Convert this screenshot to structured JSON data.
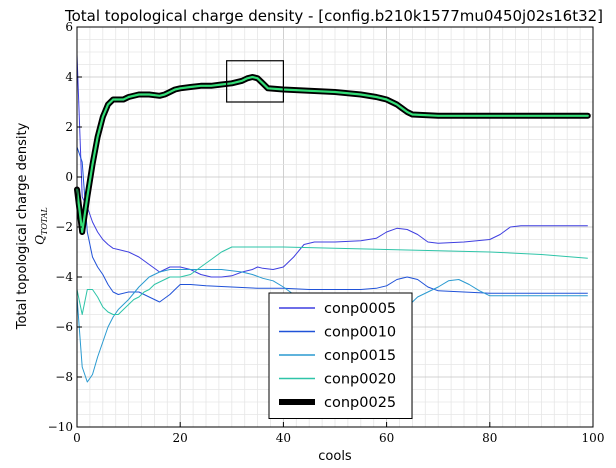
{
  "chart_data": {
    "type": "line",
    "title": "Total topological charge density - [config.b210k1577mu0450j02s16t32]",
    "xlabel": "cools",
    "ylabel": "Total topological charge density",
    "ylabel_sub": "Q_TOTAL",
    "xlim": [
      0,
      100
    ],
    "ylim": [
      -10,
      6
    ],
    "x_ticks": [
      0,
      20,
      40,
      60,
      80,
      100
    ],
    "y_ticks": [
      -10,
      -8,
      -6,
      -4,
      -2,
      0,
      2,
      4,
      6
    ],
    "x_tick_labels": [
      "0",
      "20",
      "40",
      "60",
      "80",
      "100"
    ],
    "y_tick_labels": [
      "−10",
      "−8",
      "−6",
      "−4",
      "−2",
      "0",
      "2",
      "4",
      "6"
    ],
    "grid": true,
    "minor_grid": true,
    "legend_position": "bottom-center",
    "annotation": "inset zoom box around cools 29–40",
    "annotation_box": {
      "x": [
        29,
        40
      ],
      "y": [
        3.0,
        4.65
      ]
    },
    "series": [
      {
        "name": "conp0005",
        "color": "#3f3fe0",
        "width": 1,
        "x": [
          0,
          1,
          2,
          3,
          4,
          5,
          6,
          7,
          8,
          10,
          12,
          14,
          16,
          18,
          20,
          22,
          24,
          26,
          28,
          30,
          32,
          34,
          35,
          36,
          38,
          40,
          42,
          44,
          46,
          50,
          55,
          58,
          60,
          62,
          64,
          66,
          68,
          70,
          75,
          80,
          82,
          84,
          86,
          90,
          95,
          99
        ],
        "y": [
          4.9,
          -0.8,
          -1.2,
          -1.8,
          -2.2,
          -2.5,
          -2.7,
          -2.85,
          -2.9,
          -3.0,
          -3.2,
          -3.5,
          -3.8,
          -3.6,
          -3.6,
          -3.7,
          -3.9,
          -4.0,
          -4.0,
          -3.95,
          -3.8,
          -3.7,
          -3.6,
          -3.65,
          -3.7,
          -3.6,
          -3.2,
          -2.7,
          -2.6,
          -2.6,
          -2.55,
          -2.45,
          -2.2,
          -2.05,
          -2.1,
          -2.3,
          -2.6,
          -2.65,
          -2.6,
          -2.5,
          -2.3,
          -2.0,
          -1.95,
          -1.95,
          -1.95,
          -1.95
        ]
      },
      {
        "name": "conp0010",
        "color": "#2052d8",
        "width": 1,
        "x": [
          0,
          1,
          2,
          3,
          4,
          5,
          6,
          7,
          8,
          10,
          12,
          14,
          16,
          18,
          19,
          20,
          22,
          25,
          30,
          35,
          40,
          45,
          50,
          55,
          58,
          60,
          62,
          64,
          66,
          68,
          70,
          75,
          80,
          90,
          99
        ],
        "y": [
          1.2,
          0.6,
          -2.2,
          -3.2,
          -3.6,
          -3.9,
          -4.3,
          -4.6,
          -4.7,
          -4.6,
          -4.6,
          -4.8,
          -5.0,
          -4.7,
          -4.5,
          -4.3,
          -4.3,
          -4.35,
          -4.4,
          -4.45,
          -4.45,
          -4.5,
          -4.5,
          -4.5,
          -4.45,
          -4.35,
          -4.1,
          -4.0,
          -4.1,
          -4.4,
          -4.55,
          -4.6,
          -4.65,
          -4.65,
          -4.65
        ]
      },
      {
        "name": "conp0015",
        "color": "#2a9ad0",
        "width": 1,
        "x": [
          0,
          1,
          2,
          3,
          4,
          5,
          6,
          7,
          8,
          10,
          12,
          14,
          16,
          18,
          20,
          22,
          24,
          26,
          28,
          30,
          32,
          34,
          36,
          38,
          40,
          42,
          45,
          50,
          55,
          60,
          62,
          64,
          65,
          66,
          68,
          70,
          72,
          74,
          76,
          78,
          80,
          85,
          90,
          95,
          99
        ],
        "y": [
          -4.8,
          -7.6,
          -8.2,
          -7.9,
          -7.2,
          -6.6,
          -6.0,
          -5.6,
          -5.3,
          -4.9,
          -4.4,
          -4.0,
          -3.8,
          -3.7,
          -3.7,
          -3.7,
          -3.7,
          -3.7,
          -3.7,
          -3.75,
          -3.8,
          -3.9,
          -4.05,
          -4.15,
          -4.4,
          -4.7,
          -5.1,
          -5.4,
          -5.5,
          -5.45,
          -5.4,
          -5.2,
          -5.0,
          -4.8,
          -4.6,
          -4.4,
          -4.15,
          -4.1,
          -4.3,
          -4.55,
          -4.75,
          -4.75,
          -4.75,
          -4.75,
          -4.75
        ]
      },
      {
        "name": "conp0020",
        "color": "#2ec4a8",
        "width": 1,
        "x": [
          0,
          1,
          2,
          3,
          4,
          5,
          6,
          7,
          8,
          9,
          10,
          11,
          12,
          13,
          14,
          15,
          16,
          18,
          20,
          22,
          24,
          26,
          28,
          30,
          32,
          35,
          40,
          50,
          60,
          70,
          80,
          90,
          99
        ],
        "y": [
          -4.5,
          -5.5,
          -4.5,
          -4.5,
          -4.8,
          -5.2,
          -5.4,
          -5.5,
          -5.5,
          -5.3,
          -5.1,
          -4.9,
          -4.8,
          -4.6,
          -4.5,
          -4.3,
          -4.2,
          -4.0,
          -4.0,
          -3.9,
          -3.6,
          -3.3,
          -3.0,
          -2.8,
          -2.8,
          -2.8,
          -2.8,
          -2.85,
          -2.9,
          -2.95,
          -3.0,
          -3.1,
          -3.25
        ]
      },
      {
        "name": "conp0025",
        "color": "#000000",
        "fill_color": "#33dd77",
        "width": 5,
        "x": [
          0,
          1,
          2,
          3,
          4,
          5,
          6,
          7,
          8,
          9,
          10,
          12,
          14,
          16,
          17,
          18,
          19,
          20,
          22,
          24,
          26,
          28,
          30,
          32,
          33,
          34,
          35,
          36,
          37,
          40,
          45,
          50,
          55,
          58,
          60,
          62,
          63,
          64,
          65,
          70,
          75,
          80,
          85,
          90,
          95,
          99
        ],
        "y": [
          -0.5,
          -2.2,
          -0.8,
          0.5,
          1.6,
          2.4,
          2.9,
          3.1,
          3.1,
          3.1,
          3.2,
          3.3,
          3.3,
          3.25,
          3.3,
          3.4,
          3.5,
          3.55,
          3.6,
          3.65,
          3.65,
          3.7,
          3.75,
          3.85,
          3.95,
          4.0,
          3.95,
          3.75,
          3.55,
          3.5,
          3.45,
          3.4,
          3.3,
          3.2,
          3.1,
          2.9,
          2.75,
          2.6,
          2.5,
          2.45,
          2.45,
          2.45,
          2.45,
          2.45,
          2.45,
          2.45
        ]
      }
    ]
  }
}
